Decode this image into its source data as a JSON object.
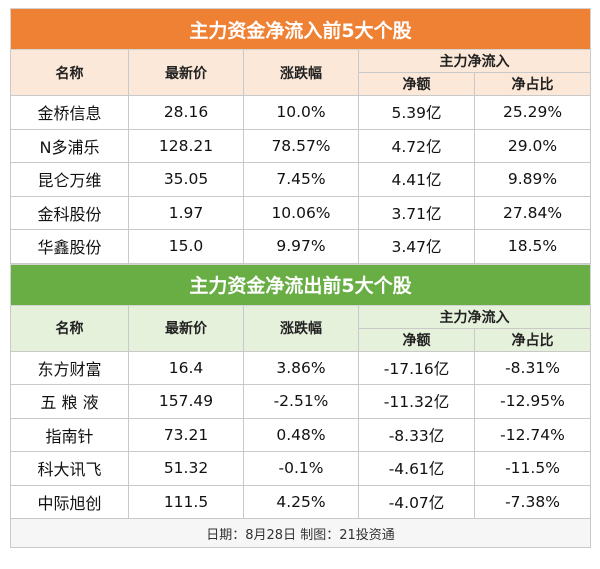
{
  "inflow": {
    "title": "主力资金净流入前5大个股",
    "headers": {
      "name": "名称",
      "price": "最新价",
      "change": "涨跌幅",
      "flow": "主力净流入",
      "net": "净额",
      "ratio": "净占比"
    },
    "rows": [
      {
        "name": "金桥信息",
        "price": "28.16",
        "change": "10.0%",
        "net": "5.39亿",
        "ratio": "25.29%"
      },
      {
        "name": "N多浦乐",
        "price": "128.21",
        "change": "78.57%",
        "net": "4.72亿",
        "ratio": "29.0%"
      },
      {
        "name": "昆仑万维",
        "price": "35.05",
        "change": "7.45%",
        "net": "4.41亿",
        "ratio": "9.89%"
      },
      {
        "name": "金科股份",
        "price": "1.97",
        "change": "10.06%",
        "net": "3.71亿",
        "ratio": "27.84%"
      },
      {
        "name": "华鑫股份",
        "price": "15.0",
        "change": "9.97%",
        "net": "3.47亿",
        "ratio": "18.5%"
      }
    ]
  },
  "outflow": {
    "title": "主力资金净流出前5大个股",
    "headers": {
      "name": "名称",
      "price": "最新价",
      "change": "涨跌幅",
      "flow": "主力净流入",
      "net": "净额",
      "ratio": "净占比"
    },
    "rows": [
      {
        "name": "东方财富",
        "price": "16.4",
        "change": "3.86%",
        "net": "-17.16亿",
        "ratio": "-8.31%"
      },
      {
        "name": "五 粮 液",
        "price": "157.49",
        "change": "-2.51%",
        "net": "-11.32亿",
        "ratio": "-12.95%"
      },
      {
        "name": "指南针",
        "price": "73.21",
        "change": "0.48%",
        "net": "-8.33亿",
        "ratio": "-12.74%"
      },
      {
        "name": "科大讯飞",
        "price": "51.32",
        "change": "-0.1%",
        "net": "-4.61亿",
        "ratio": "-11.5%"
      },
      {
        "name": "中际旭创",
        "price": "111.5",
        "change": "4.25%",
        "net": "-4.07亿",
        "ratio": "-7.38%"
      }
    ]
  },
  "footer": "日期：8月28日 制图：21投资通"
}
